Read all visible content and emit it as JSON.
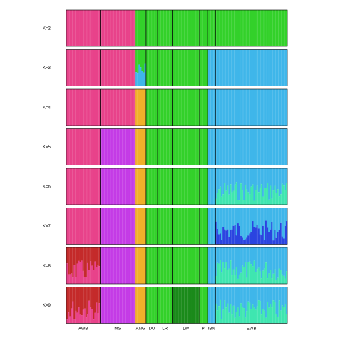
{
  "chart_data": {
    "type": "bar",
    "stacked": true,
    "title": "",
    "xlabel": "",
    "ylabel": "",
    "ylim": [
      0,
      1
    ],
    "grid": false,
    "colors": {
      "pink": "#e8428a",
      "green": "#33d12a",
      "skyblue": "#3fb6ea",
      "orange": "#f0b02a",
      "purple": "#c43be6",
      "teal": "#3fe6b0",
      "blue": "#2a44e0",
      "red": "#c42a2a",
      "darkgreen": "#1a8a1a"
    },
    "populations": [
      {
        "name": "AWB",
        "from": 0.0,
        "to": 0.153
      },
      {
        "name": "MS",
        "from": 0.153,
        "to": 0.311
      },
      {
        "name": "ANG",
        "from": 0.311,
        "to": 0.361
      },
      {
        "name": "DU",
        "from": 0.361,
        "to": 0.413
      },
      {
        "name": "LR",
        "from": 0.413,
        "to": 0.479
      },
      {
        "name": "LW",
        "from": 0.479,
        "to": 0.603
      },
      {
        "name": "PI",
        "from": 0.603,
        "to": 0.639
      },
      {
        "name": "IBN",
        "from": 0.639,
        "to": 0.675
      },
      {
        "name": "EWB",
        "from": 0.675,
        "to": 1.0
      }
    ],
    "panels": [
      {
        "label": "K=2",
        "pop_colors": {
          "AWB": [
            "pink"
          ],
          "MS": [
            "pink"
          ],
          "ANG": [
            "green"
          ],
          "DU": [
            "green"
          ],
          "LR": [
            "green"
          ],
          "LW": [
            "green"
          ],
          "PI": [
            "green"
          ],
          "IBN": [
            "green"
          ],
          "EWB": [
            "green"
          ]
        }
      },
      {
        "label": "K=3",
        "pop_colors": {
          "AWB": [
            "pink"
          ],
          "MS": [
            "pink"
          ],
          "ANG": [
            "green",
            "skyblue"
          ],
          "DU": [
            "green"
          ],
          "LR": [
            "green"
          ],
          "LW": [
            "green"
          ],
          "PI": [
            "green"
          ],
          "IBN": [
            "skyblue"
          ],
          "EWB": [
            "skyblue"
          ]
        }
      },
      {
        "label": "K=4",
        "pop_colors": {
          "AWB": [
            "pink"
          ],
          "MS": [
            "pink"
          ],
          "ANG": [
            "orange"
          ],
          "DU": [
            "green"
          ],
          "LR": [
            "green"
          ],
          "LW": [
            "green"
          ],
          "PI": [
            "green"
          ],
          "IBN": [
            "skyblue"
          ],
          "EWB": [
            "skyblue"
          ]
        }
      },
      {
        "label": "K=5",
        "pop_colors": {
          "AWB": [
            "pink"
          ],
          "MS": [
            "purple"
          ],
          "ANG": [
            "orange"
          ],
          "DU": [
            "green"
          ],
          "LR": [
            "green"
          ],
          "LW": [
            "green"
          ],
          "PI": [
            "green"
          ],
          "IBN": [
            "skyblue"
          ],
          "EWB": [
            "skyblue"
          ]
        }
      },
      {
        "label": "K=6",
        "pop_colors": {
          "AWB": [
            "pink"
          ],
          "MS": [
            "purple"
          ],
          "ANG": [
            "orange"
          ],
          "DU": [
            "green"
          ],
          "LR": [
            "green"
          ],
          "LW": [
            "green"
          ],
          "PI": [
            "green"
          ],
          "IBN": [
            "skyblue"
          ],
          "EWB": [
            "skyblue",
            "teal"
          ]
        }
      },
      {
        "label": "K=7",
        "pop_colors": {
          "AWB": [
            "pink"
          ],
          "MS": [
            "purple"
          ],
          "ANG": [
            "orange"
          ],
          "DU": [
            "green"
          ],
          "LR": [
            "green"
          ],
          "LW": [
            "green"
          ],
          "PI": [
            "green"
          ],
          "IBN": [
            "skyblue"
          ],
          "EWB": [
            "skyblue",
            "blue"
          ]
        }
      },
      {
        "label": "K=8",
        "pop_colors": {
          "AWB": [
            "red",
            "pink"
          ],
          "MS": [
            "purple"
          ],
          "ANG": [
            "orange"
          ],
          "DU": [
            "green"
          ],
          "LR": [
            "green"
          ],
          "LW": [
            "green"
          ],
          "PI": [
            "green"
          ],
          "IBN": [
            "skyblue"
          ],
          "EWB": [
            "skyblue",
            "teal"
          ]
        }
      },
      {
        "label": "K=9",
        "pop_colors": {
          "AWB": [
            "red",
            "pink"
          ],
          "MS": [
            "purple"
          ],
          "ANG": [
            "orange"
          ],
          "DU": [
            "green"
          ],
          "LR": [
            "green"
          ],
          "LW": [
            "darkgreen"
          ],
          "PI": [
            "green"
          ],
          "IBN": [
            "skyblue"
          ],
          "EWB": [
            "skyblue",
            "teal"
          ]
        }
      }
    ]
  }
}
